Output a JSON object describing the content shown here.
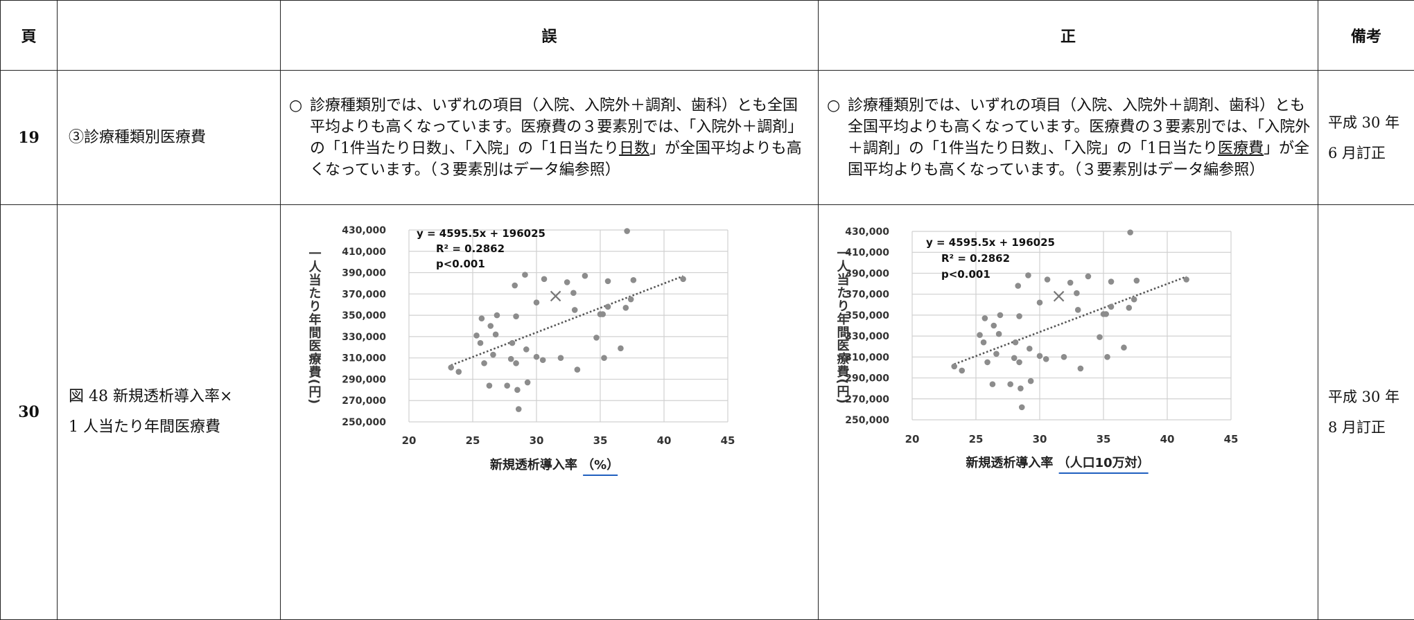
{
  "header": {
    "page": "頁",
    "item": "",
    "wrong": "誤",
    "right": "正",
    "note": "備考"
  },
  "rows": [
    {
      "page": "19",
      "item": "③診療種類別医療費",
      "wrong": {
        "mark": "○",
        "text_1": "診療種類別では、いずれの項目（入院、入院外＋調剤、歯科）とも全国平均よりも高くなっています。医療費の３要素別では、「入院外＋調剤」の「1件当たり日数」、「入院」の「1日当たり",
        "underlined": "日数",
        "text_2": "」が全国平均よりも高くなっています。（３要素別はデータ編参照）"
      },
      "right": {
        "mark": "○",
        "text_1": "診療種類別では、いずれの項目（入院、入院外＋調剤、歯科）とも全国平均よりも高くなっています。医療費の３要素別では、「入院外＋調剤」の「1件当たり日数」、「入院」の「1日当たり",
        "underlined": "医療費",
        "text_2": "」が全国平均よりも高くなっています。（３要素別はデータ編参照）"
      },
      "note": {
        "line1": "平成 30 年",
        "line2": "6 月訂正"
      }
    },
    {
      "page": "30",
      "item": {
        "line1": "図 48 新規透析導入率×",
        "line2": "1 人当たり年間医療費"
      },
      "note": {
        "line1": "平成 30 年",
        "line2": "8 月訂正"
      }
    }
  ],
  "chart_data": [
    {
      "type": "scatter",
      "panel": "誤",
      "xlabel_prefix": "新規透析導入率",
      "xlabel_underlined": "（%）",
      "ylabel": "一人当たり年間医療費(円)",
      "xlim": [
        20,
        45
      ],
      "ylim": [
        250000,
        430000
      ],
      "x_ticks": [
        "20",
        "25",
        "30",
        "35",
        "40",
        "45"
      ],
      "y_ticks": [
        "430,000",
        "410,000",
        "390,000",
        "370,000",
        "350,000",
        "330,000",
        "310,000",
        "290,000",
        "270,000",
        "250,000"
      ],
      "grid": true,
      "annotation": [
        "y = 4595.5x + 196025",
        "R² = 0.2862",
        "p<0.001"
      ],
      "trendline": {
        "slope": 4595.5,
        "intercept": 196025,
        "x_range": [
          23.3,
          41.5
        ]
      },
      "marker_point": {
        "x": 31.5,
        "y": 368000
      },
      "points": [
        {
          "x": 23.3,
          "y": 301000
        },
        {
          "x": 23.9,
          "y": 297000
        },
        {
          "x": 25.3,
          "y": 331000
        },
        {
          "x": 25.6,
          "y": 324000
        },
        {
          "x": 25.7,
          "y": 347000
        },
        {
          "x": 25.9,
          "y": 305000
        },
        {
          "x": 26.3,
          "y": 284000
        },
        {
          "x": 26.4,
          "y": 340000
        },
        {
          "x": 26.6,
          "y": 313000
        },
        {
          "x": 26.8,
          "y": 332000
        },
        {
          "x": 26.9,
          "y": 350000
        },
        {
          "x": 27.7,
          "y": 284000
        },
        {
          "x": 28.0,
          "y": 309000
        },
        {
          "x": 28.4,
          "y": 305000
        },
        {
          "x": 28.3,
          "y": 378000
        },
        {
          "x": 28.4,
          "y": 349000
        },
        {
          "x": 28.5,
          "y": 280000
        },
        {
          "x": 28.6,
          "y": 262000
        },
        {
          "x": 28.1,
          "y": 324000
        },
        {
          "x": 29.1,
          "y": 388000
        },
        {
          "x": 29.2,
          "y": 318000
        },
        {
          "x": 29.3,
          "y": 287000
        },
        {
          "x": 30.0,
          "y": 311000
        },
        {
          "x": 30.0,
          "y": 362000
        },
        {
          "x": 30.5,
          "y": 308000
        },
        {
          "x": 30.6,
          "y": 384000
        },
        {
          "x": 31.9,
          "y": 310000
        },
        {
          "x": 32.4,
          "y": 381000
        },
        {
          "x": 32.9,
          "y": 371000
        },
        {
          "x": 33.0,
          "y": 355000
        },
        {
          "x": 33.2,
          "y": 299000
        },
        {
          "x": 33.8,
          "y": 387000
        },
        {
          "x": 34.7,
          "y": 329000
        },
        {
          "x": 35.0,
          "y": 351000
        },
        {
          "x": 35.2,
          "y": 351000
        },
        {
          "x": 35.3,
          "y": 310000
        },
        {
          "x": 35.6,
          "y": 382000
        },
        {
          "x": 35.6,
          "y": 358000
        },
        {
          "x": 36.6,
          "y": 319000
        },
        {
          "x": 37.0,
          "y": 357000
        },
        {
          "x": 37.4,
          "y": 365000
        },
        {
          "x": 37.6,
          "y": 383000
        },
        {
          "x": 37.1,
          "y": 429000
        },
        {
          "x": 41.5,
          "y": 384000
        }
      ]
    },
    {
      "type": "scatter",
      "panel": "正",
      "xlabel_prefix": "新規透析導入率",
      "xlabel_underlined": "（人口10万対）",
      "ylabel": "一人当たり年間医療費(円)",
      "xlim": [
        20,
        45
      ],
      "ylim": [
        250000,
        430000
      ],
      "x_ticks": [
        "20",
        "25",
        "30",
        "35",
        "40",
        "45"
      ],
      "y_ticks": [
        "430,000",
        "410,000",
        "390,000",
        "370,000",
        "350,000",
        "330,000",
        "310,000",
        "290,000",
        "270,000",
        "250,000"
      ],
      "grid": true,
      "annotation": [
        "y = 4595.5x + 196025",
        "R² = 0.2862",
        "p<0.001"
      ],
      "trendline": {
        "slope": 4595.5,
        "intercept": 196025,
        "x_range": [
          23.3,
          41.5
        ]
      },
      "marker_point": {
        "x": 31.5,
        "y": 368000
      },
      "points": [
        {
          "x": 23.3,
          "y": 301000
        },
        {
          "x": 23.9,
          "y": 297000
        },
        {
          "x": 25.3,
          "y": 331000
        },
        {
          "x": 25.6,
          "y": 324000
        },
        {
          "x": 25.7,
          "y": 347000
        },
        {
          "x": 25.9,
          "y": 305000
        },
        {
          "x": 26.3,
          "y": 284000
        },
        {
          "x": 26.4,
          "y": 340000
        },
        {
          "x": 26.6,
          "y": 313000
        },
        {
          "x": 26.8,
          "y": 332000
        },
        {
          "x": 26.9,
          "y": 350000
        },
        {
          "x": 27.7,
          "y": 284000
        },
        {
          "x": 28.0,
          "y": 309000
        },
        {
          "x": 28.4,
          "y": 305000
        },
        {
          "x": 28.3,
          "y": 378000
        },
        {
          "x": 28.4,
          "y": 349000
        },
        {
          "x": 28.5,
          "y": 280000
        },
        {
          "x": 28.6,
          "y": 262000
        },
        {
          "x": 28.1,
          "y": 324000
        },
        {
          "x": 29.1,
          "y": 388000
        },
        {
          "x": 29.2,
          "y": 318000
        },
        {
          "x": 29.3,
          "y": 287000
        },
        {
          "x": 30.0,
          "y": 311000
        },
        {
          "x": 30.0,
          "y": 362000
        },
        {
          "x": 30.5,
          "y": 308000
        },
        {
          "x": 30.6,
          "y": 384000
        },
        {
          "x": 31.9,
          "y": 310000
        },
        {
          "x": 32.4,
          "y": 381000
        },
        {
          "x": 32.9,
          "y": 371000
        },
        {
          "x": 33.0,
          "y": 355000
        },
        {
          "x": 33.2,
          "y": 299000
        },
        {
          "x": 33.8,
          "y": 387000
        },
        {
          "x": 34.7,
          "y": 329000
        },
        {
          "x": 35.0,
          "y": 351000
        },
        {
          "x": 35.2,
          "y": 351000
        },
        {
          "x": 35.3,
          "y": 310000
        },
        {
          "x": 35.6,
          "y": 382000
        },
        {
          "x": 35.6,
          "y": 358000
        },
        {
          "x": 36.6,
          "y": 319000
        },
        {
          "x": 37.0,
          "y": 357000
        },
        {
          "x": 37.4,
          "y": 365000
        },
        {
          "x": 37.6,
          "y": 383000
        },
        {
          "x": 37.1,
          "y": 429000
        },
        {
          "x": 41.5,
          "y": 384000
        }
      ]
    }
  ]
}
